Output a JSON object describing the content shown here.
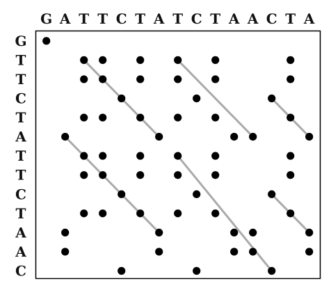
{
  "top_sequence": [
    "G",
    "A",
    "T",
    "T",
    "C",
    "T",
    "A",
    "T",
    "C",
    "T",
    "A",
    "A",
    "C",
    "T",
    "A"
  ],
  "left_sequence": [
    "G",
    "T",
    "T",
    "C",
    "T",
    "A",
    "T",
    "T",
    "C",
    "T",
    "A",
    "A",
    "C"
  ],
  "colors": {
    "dot": "#000000",
    "diagonal_line": "#aaaaaa",
    "frame": "#000000",
    "letters": "#111111"
  },
  "matrix_rule": "a dot marks each cell where the left-sequence letter equals the top-sequence letter, except that A/A matches in rows 6 and 11 are only partly marked",
  "dots": [
    [
      0,
      0
    ],
    [
      1,
      2
    ],
    [
      1,
      3
    ],
    [
      1,
      5
    ],
    [
      1,
      7
    ],
    [
      1,
      9
    ],
    [
      1,
      13
    ],
    [
      2,
      2
    ],
    [
      2,
      3
    ],
    [
      2,
      5
    ],
    [
      2,
      7
    ],
    [
      2,
      9
    ],
    [
      2,
      13
    ],
    [
      3,
      4
    ],
    [
      3,
      8
    ],
    [
      3,
      12
    ],
    [
      4,
      2
    ],
    [
      4,
      3
    ],
    [
      4,
      5
    ],
    [
      4,
      7
    ],
    [
      4,
      9
    ],
    [
      4,
      13
    ],
    [
      5,
      1
    ],
    [
      5,
      6
    ],
    [
      5,
      10
    ],
    [
      5,
      11
    ],
    [
      5,
      14
    ],
    [
      6,
      2
    ],
    [
      6,
      3
    ],
    [
      6,
      5
    ],
    [
      6,
      7
    ],
    [
      6,
      9
    ],
    [
      6,
      13
    ],
    [
      7,
      2
    ],
    [
      7,
      3
    ],
    [
      7,
      5
    ],
    [
      7,
      7
    ],
    [
      7,
      9
    ],
    [
      7,
      13
    ],
    [
      8,
      4
    ],
    [
      8,
      8
    ],
    [
      8,
      12
    ],
    [
      9,
      2
    ],
    [
      9,
      3
    ],
    [
      9,
      5
    ],
    [
      9,
      7
    ],
    [
      9,
      9
    ],
    [
      9,
      13
    ],
    [
      10,
      1
    ],
    [
      10,
      6
    ],
    [
      10,
      10
    ],
    [
      10,
      11
    ],
    [
      10,
      14
    ],
    [
      11,
      1
    ],
    [
      11,
      6
    ],
    [
      11,
      10
    ],
    [
      11,
      11
    ],
    [
      11,
      14
    ],
    [
      12,
      4
    ],
    [
      12,
      8
    ],
    [
      12,
      12
    ]
  ],
  "diagonals": [
    [
      [
        1,
        2
      ],
      [
        5,
        6
      ]
    ],
    [
      [
        1,
        7
      ],
      [
        5,
        11
      ]
    ],
    [
      [
        3,
        12
      ],
      [
        5,
        14
      ]
    ],
    [
      [
        5,
        1
      ],
      [
        10,
        6
      ]
    ],
    [
      [
        6,
        7
      ],
      [
        12,
        12
      ]
    ],
    [
      [
        8,
        12
      ],
      [
        10,
        14
      ]
    ]
  ]
}
